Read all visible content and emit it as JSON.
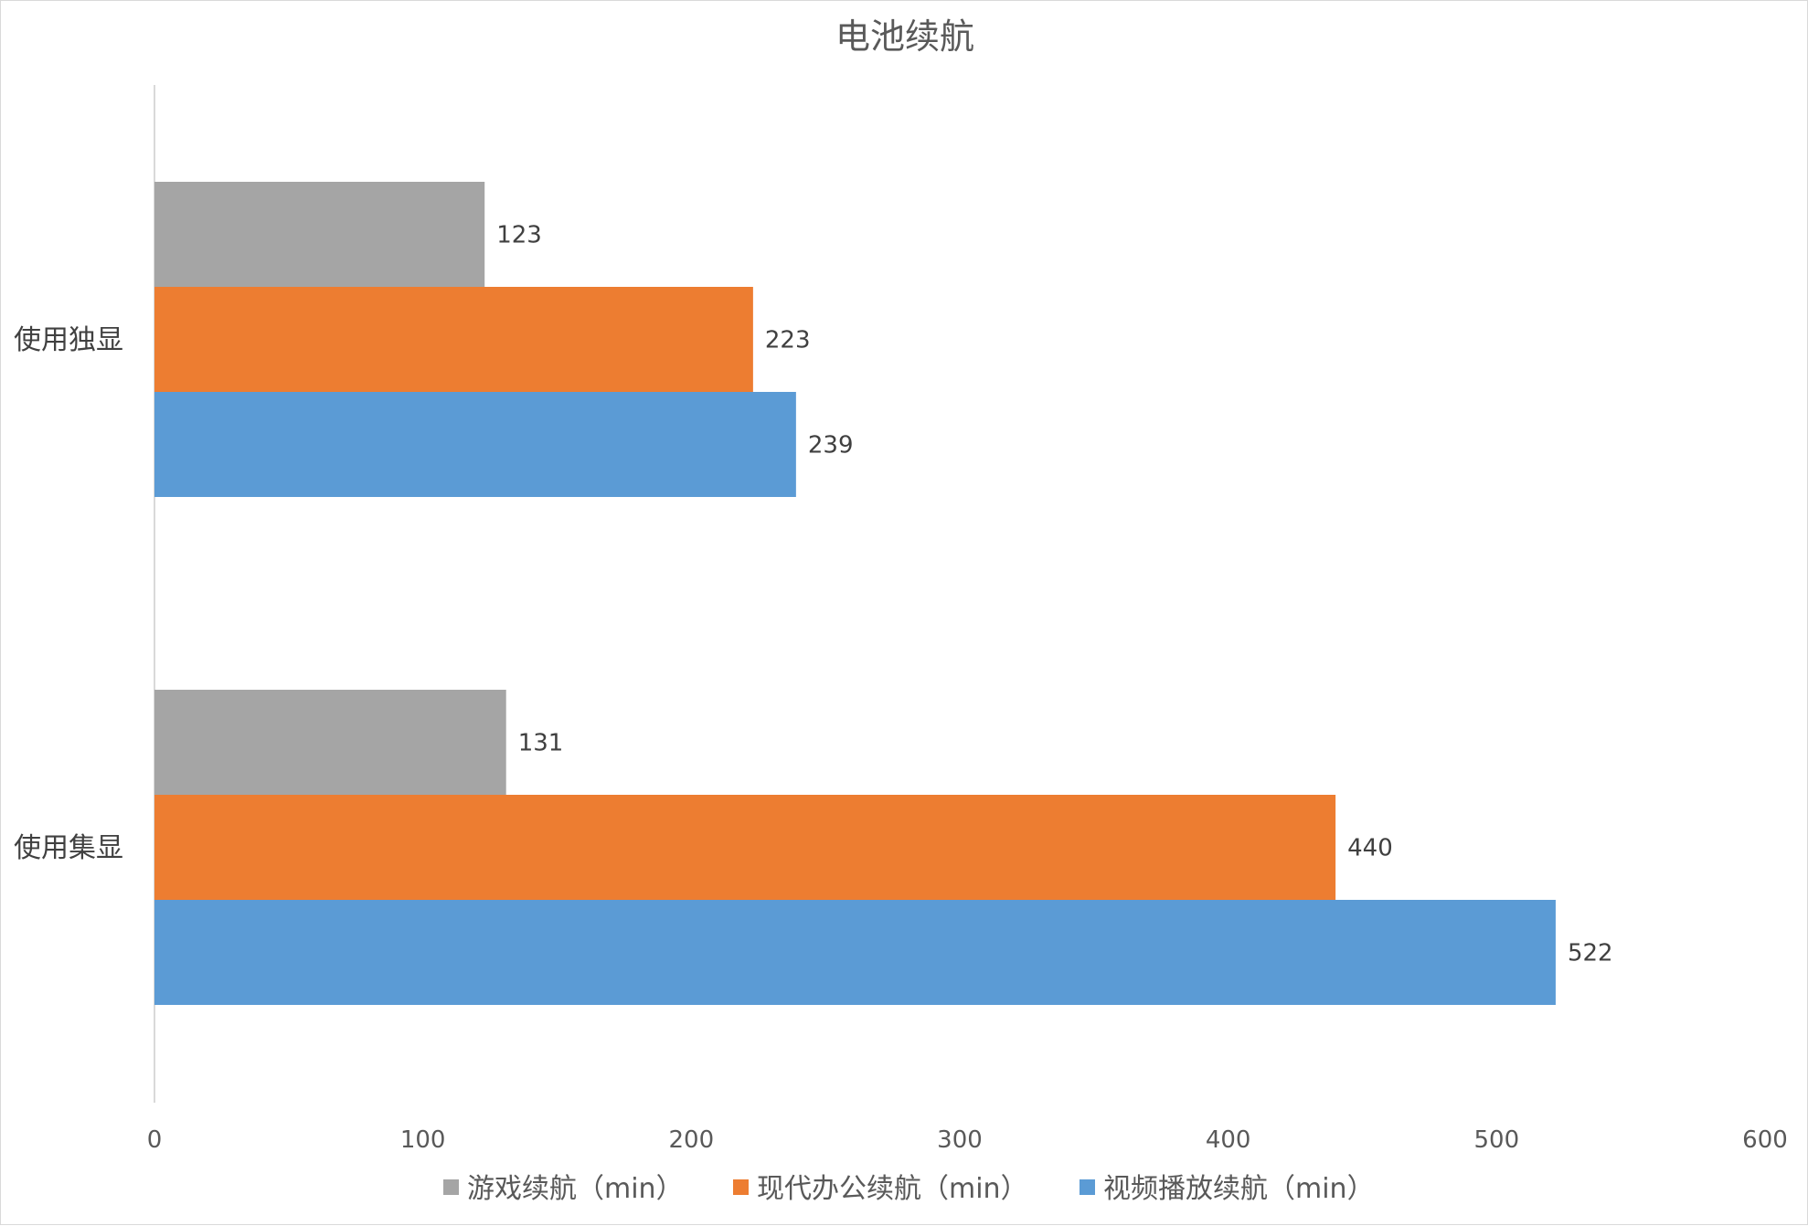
{
  "chart_data": {
    "type": "bar",
    "orientation": "horizontal",
    "title": "电池续航",
    "categories": [
      "使用独显",
      "使用集显"
    ],
    "series": [
      {
        "name": "游戏续航（min）",
        "values": [
          123,
          131
        ],
        "color": "#A5A5A5"
      },
      {
        "name": "现代办公续航（min）",
        "values": [
          223,
          440
        ],
        "color": "#ED7D31"
      },
      {
        "name": "视频播放续航（min）",
        "values": [
          239,
          522
        ],
        "color": "#5B9BD5"
      }
    ],
    "xlim": [
      0,
      600
    ],
    "xticks": [
      0,
      100,
      200,
      300,
      400,
      500,
      600
    ],
    "grid": false,
    "data_labels": true,
    "legend_position": "bottom"
  }
}
